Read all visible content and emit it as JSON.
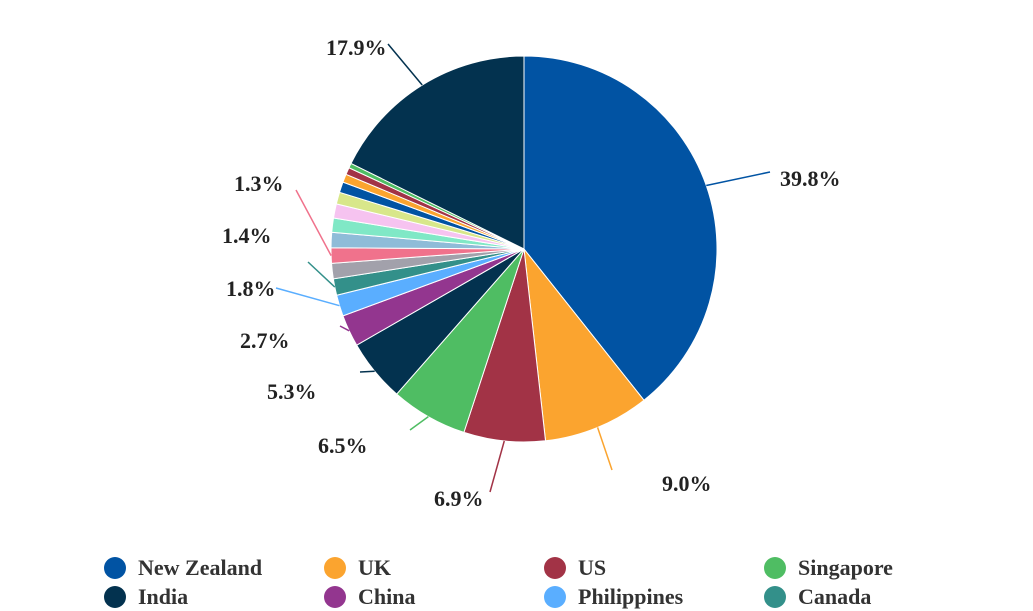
{
  "chart_data": {
    "type": "pie",
    "slices": [
      {
        "name": "New Zealand",
        "value": 39.8,
        "color": "#0153a3",
        "label": "39.8%"
      },
      {
        "name": "UK",
        "value": 9.0,
        "color": "#fba42f",
        "label": "9.0%"
      },
      {
        "name": "US",
        "value": 6.9,
        "color": "#a23346",
        "label": "6.9%"
      },
      {
        "name": "Singapore",
        "value": 6.5,
        "color": "#4fbd63",
        "label": "6.5%"
      },
      {
        "name": "India",
        "value": 5.3,
        "color": "#03324f",
        "label": "5.3%"
      },
      {
        "name": "China",
        "value": 2.7,
        "color": "#93368f",
        "label": "2.7%"
      },
      {
        "name": "Philippines",
        "value": 1.8,
        "color": "#5aaeff",
        "label": "1.8%"
      },
      {
        "name": "Canada",
        "value": 1.4,
        "color": "#33908a",
        "label": "1.4%"
      },
      {
        "name": "",
        "value": 1.3,
        "color": "#a2a1ab",
        "label": ""
      },
      {
        "name": "",
        "value": 1.3,
        "color": "#f0728c",
        "label": "1.3%"
      },
      {
        "name": "",
        "value": 1.3,
        "color": "#8fbcd8",
        "label": ""
      },
      {
        "name": "",
        "value": 1.2,
        "color": "#80e8c6",
        "label": ""
      },
      {
        "name": "",
        "value": 1.2,
        "color": "#f6c3f0",
        "label": ""
      },
      {
        "name": "",
        "value": 1.0,
        "color": "#d8e78a",
        "label": ""
      },
      {
        "name": "",
        "value": 0.9,
        "color": "#0153a3",
        "label": ""
      },
      {
        "name": "",
        "value": 0.7,
        "color": "#fba42f",
        "label": ""
      },
      {
        "name": "",
        "value": 0.6,
        "color": "#a23346",
        "label": ""
      },
      {
        "name": "",
        "value": 0.4,
        "color": "#4fbd63",
        "label": ""
      },
      {
        "name": "",
        "value": 17.9,
        "color": "#03324f",
        "label": "17.9%"
      }
    ],
    "legend": [
      {
        "name": "New Zealand",
        "color": "#0153a3"
      },
      {
        "name": "UK",
        "color": "#fba42f"
      },
      {
        "name": "US",
        "color": "#a23346"
      },
      {
        "name": "Singapore",
        "color": "#4fbd63"
      },
      {
        "name": "India",
        "color": "#03324f"
      },
      {
        "name": "China",
        "color": "#93368f"
      },
      {
        "name": "Philippines",
        "color": "#5aaeff"
      },
      {
        "name": "Canada",
        "color": "#33908a"
      }
    ],
    "legend_position": "bottom"
  }
}
